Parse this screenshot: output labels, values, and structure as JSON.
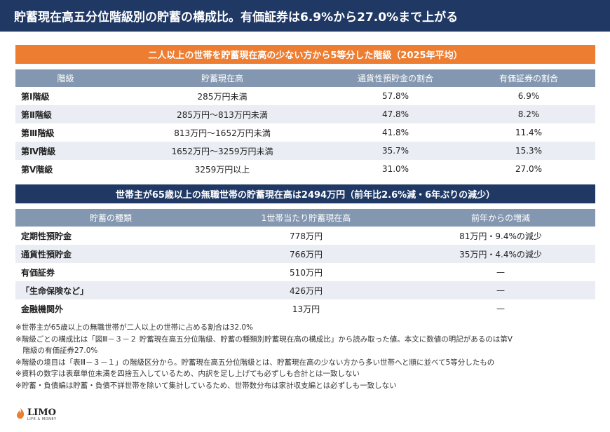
{
  "title": "貯蓄現在高五分位階級別の貯蓄の構成比。有価証券は6.9%から27.0%まで上がる",
  "section1": {
    "header": "二人以上の世帯を貯蓄現在高の少ない方から5等分した階級（2025年平均）",
    "columns": [
      "階級",
      "貯蓄現在高",
      "通貨性預貯金の割合",
      "有価証券の割合"
    ],
    "rows": [
      [
        "第Ⅰ階級",
        "285万円未満",
        "57.8%",
        "6.9%"
      ],
      [
        "第Ⅱ階級",
        "285万円〜813万円未満",
        "47.8%",
        "8.2%"
      ],
      [
        "第Ⅲ階級",
        "813万円〜1652万円未満",
        "41.8%",
        "11.4%"
      ],
      [
        "第Ⅳ階級",
        "1652万円〜3259万円未満",
        "35.7%",
        "15.3%"
      ],
      [
        "第Ⅴ階級",
        "3259万円以上",
        "31.0%",
        "27.0%"
      ]
    ]
  },
  "section2": {
    "header": "世帯主が65歳以上の無職世帯の貯蓄現在高は2494万円（前年比2.6%減・6年ぶりの減少）",
    "columns": [
      "貯蓄の種類",
      "1世帯当たり貯蓄現在高",
      "前年からの増減"
    ],
    "rows": [
      [
        "定期性預貯金",
        "778万円",
        "81万円・9.4%の減少"
      ],
      [
        "通貨性預貯金",
        "766万円",
        "35万円・4.4%の減少"
      ],
      [
        "有価証券",
        "510万円",
        "—"
      ],
      [
        "「生命保険など」",
        "426万円",
        "—"
      ],
      [
        "金融機関外",
        "13万円",
        "—"
      ]
    ]
  },
  "notes": [
    "※世帯主が65歳以上の無職世帯が二人以上の世帯に占める割合は32.0%",
    "※階級ごとの構成比は「図Ⅲ－３－２ 貯蓄現在高五分位階級、貯蓄の種類別貯蓄現在高の構成比」から読み取った値。本文に数値の明記があるのは第Ⅴ",
    "　階級の有価証券27.0%",
    "※階級の境目は「表Ⅲ－３－１」の階級区分から。貯蓄現在高五分位階級とは、貯蓄現在高の少ない方から多い世帯へと順に並べて5等分したもの",
    "※資料の数字は表章単位未満を四捨五入しているため、内訳を足し上げても必ずしも合計とは一致しない",
    "※貯蓄・負債編は貯蓄・負債不詳世帯を除いて集計しているため、世帯数分布は家計収支編とは必ずしも一致しない"
  ],
  "logo": {
    "main": "LIMO",
    "sub": "LIFE & MONEY",
    "icon": "limo-flame-icon",
    "accent": "#ed7d31"
  },
  "colors": {
    "navy": "#1f3864",
    "orange": "#ed7d31",
    "header_gray": "#8497b0",
    "row_alt": "#eaeef4"
  }
}
